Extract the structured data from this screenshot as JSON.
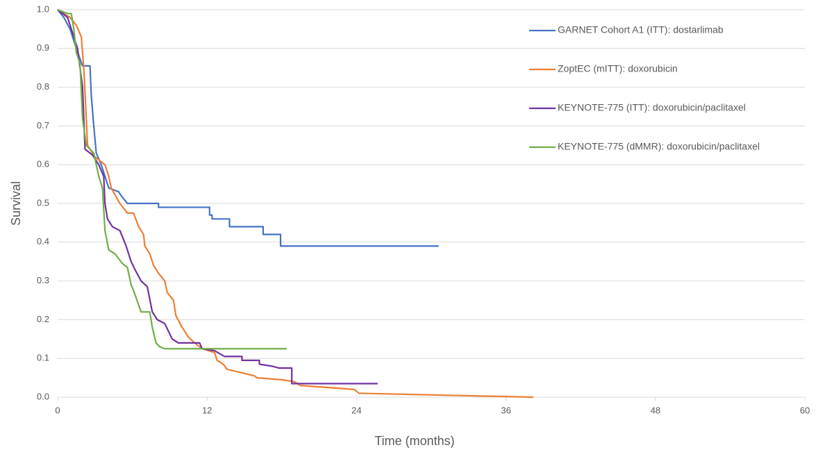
{
  "chart_data": {
    "type": "line",
    "xlabel": "Time (months)",
    "ylabel": "Survival",
    "xlim": [
      0,
      60
    ],
    "xticks": [
      0,
      12,
      24,
      36,
      48,
      60
    ],
    "ylim": [
      0,
      1
    ],
    "yticks": [
      {
        "value": 0,
        "label": "0.0"
      },
      0.1,
      0.2,
      0.3,
      0.4,
      0.5,
      0.6,
      0.7,
      0.8,
      0.9,
      {
        "value": 1,
        "label": "1.0"
      }
    ],
    "grid": true,
    "legend": "upper right",
    "series": [
      {
        "name": "GARNET Cohort A1 (ITT): dostarlimab",
        "color": "#4472c4",
        "x": [
          0,
          0.5,
          1.0,
          1.5,
          2.0,
          2.6,
          2.7,
          2.9,
          3.1,
          3.5,
          3.7,
          4.1,
          4.9,
          5.1,
          5.6,
          8.1,
          8.1,
          12.2,
          12.2,
          12.4,
          12.4,
          13.8,
          13.8,
          16.5,
          16.5,
          17.9,
          17.9,
          30.6
        ],
        "values": [
          1.0,
          0.98,
          0.95,
          0.9,
          0.855,
          0.855,
          0.78,
          0.7,
          0.63,
          0.6,
          0.58,
          0.54,
          0.53,
          0.52,
          0.5,
          0.5,
          0.49,
          0.49,
          0.47,
          0.47,
          0.46,
          0.46,
          0.44,
          0.44,
          0.42,
          0.42,
          0.39,
          0.39
        ]
      },
      {
        "name": "ZoptEC (mITT): doxorubicin",
        "color": "#ed7d31",
        "x": [
          0,
          1.0,
          1.5,
          1.9,
          2.1,
          2.3,
          2.4,
          3.0,
          3.8,
          4.1,
          4.3,
          5.0,
          5.6,
          6.1,
          6.5,
          6.9,
          7.0,
          7.4,
          7.7,
          8.1,
          8.6,
          8.8,
          9.3,
          9.5,
          10.0,
          10.5,
          11.0,
          11.6,
          12.6,
          12.8,
          13.3,
          13.6,
          15.8,
          16.0,
          18.0,
          19.0,
          19.5,
          23.8,
          24.2,
          38.2
        ],
        "values": [
          1.0,
          0.98,
          0.96,
          0.93,
          0.85,
          0.72,
          0.65,
          0.62,
          0.6,
          0.57,
          0.54,
          0.5,
          0.475,
          0.475,
          0.44,
          0.42,
          0.39,
          0.37,
          0.34,
          0.32,
          0.3,
          0.27,
          0.25,
          0.21,
          0.18,
          0.155,
          0.14,
          0.125,
          0.115,
          0.095,
          0.085,
          0.072,
          0.055,
          0.05,
          0.045,
          0.04,
          0.03,
          0.02,
          0.01,
          0.0
        ]
      },
      {
        "name": "KEYNOTE-775 (ITT): doxorubicin/paclitaxel",
        "color": "#7030a0",
        "x": [
          0,
          0.8,
          1.2,
          1.6,
          2.0,
          2.2,
          2.8,
          3.3,
          3.7,
          3.8,
          4.0,
          4.4,
          5.0,
          5.5,
          5.9,
          6.2,
          6.7,
          7.2,
          7.6,
          8.0,
          8.6,
          9.2,
          9.7,
          11.4,
          11.6,
          12.6,
          13.4,
          14.8,
          14.8,
          16.2,
          16.2,
          17.2,
          17.8,
          18.8,
          18.8,
          25.7
        ],
        "values": [
          1.0,
          0.98,
          0.94,
          0.9,
          0.8,
          0.64,
          0.625,
          0.6,
          0.57,
          0.5,
          0.46,
          0.44,
          0.43,
          0.39,
          0.35,
          0.33,
          0.3,
          0.285,
          0.22,
          0.2,
          0.19,
          0.15,
          0.14,
          0.14,
          0.125,
          0.12,
          0.105,
          0.105,
          0.095,
          0.095,
          0.085,
          0.08,
          0.075,
          0.075,
          0.035,
          0.035
        ]
      },
      {
        "name": "KEYNOTE-775 (dMMR): doxorubicin/paclitaxel",
        "color": "#70ad47",
        "x": [
          0,
          0.8,
          1.1,
          1.3,
          1.5,
          1.8,
          2.0,
          2.3,
          2.9,
          3.3,
          3.6,
          3.8,
          4.1,
          4.6,
          5.2,
          5.6,
          5.9,
          6.1,
          6.7,
          7.4,
          7.6,
          7.9,
          8.2,
          8.6,
          18.4
        ],
        "values": [
          1.0,
          0.99,
          0.99,
          0.95,
          0.89,
          0.86,
          0.72,
          0.65,
          0.63,
          0.57,
          0.54,
          0.43,
          0.38,
          0.37,
          0.345,
          0.335,
          0.29,
          0.275,
          0.22,
          0.22,
          0.18,
          0.14,
          0.13,
          0.125,
          0.125
        ]
      }
    ]
  }
}
